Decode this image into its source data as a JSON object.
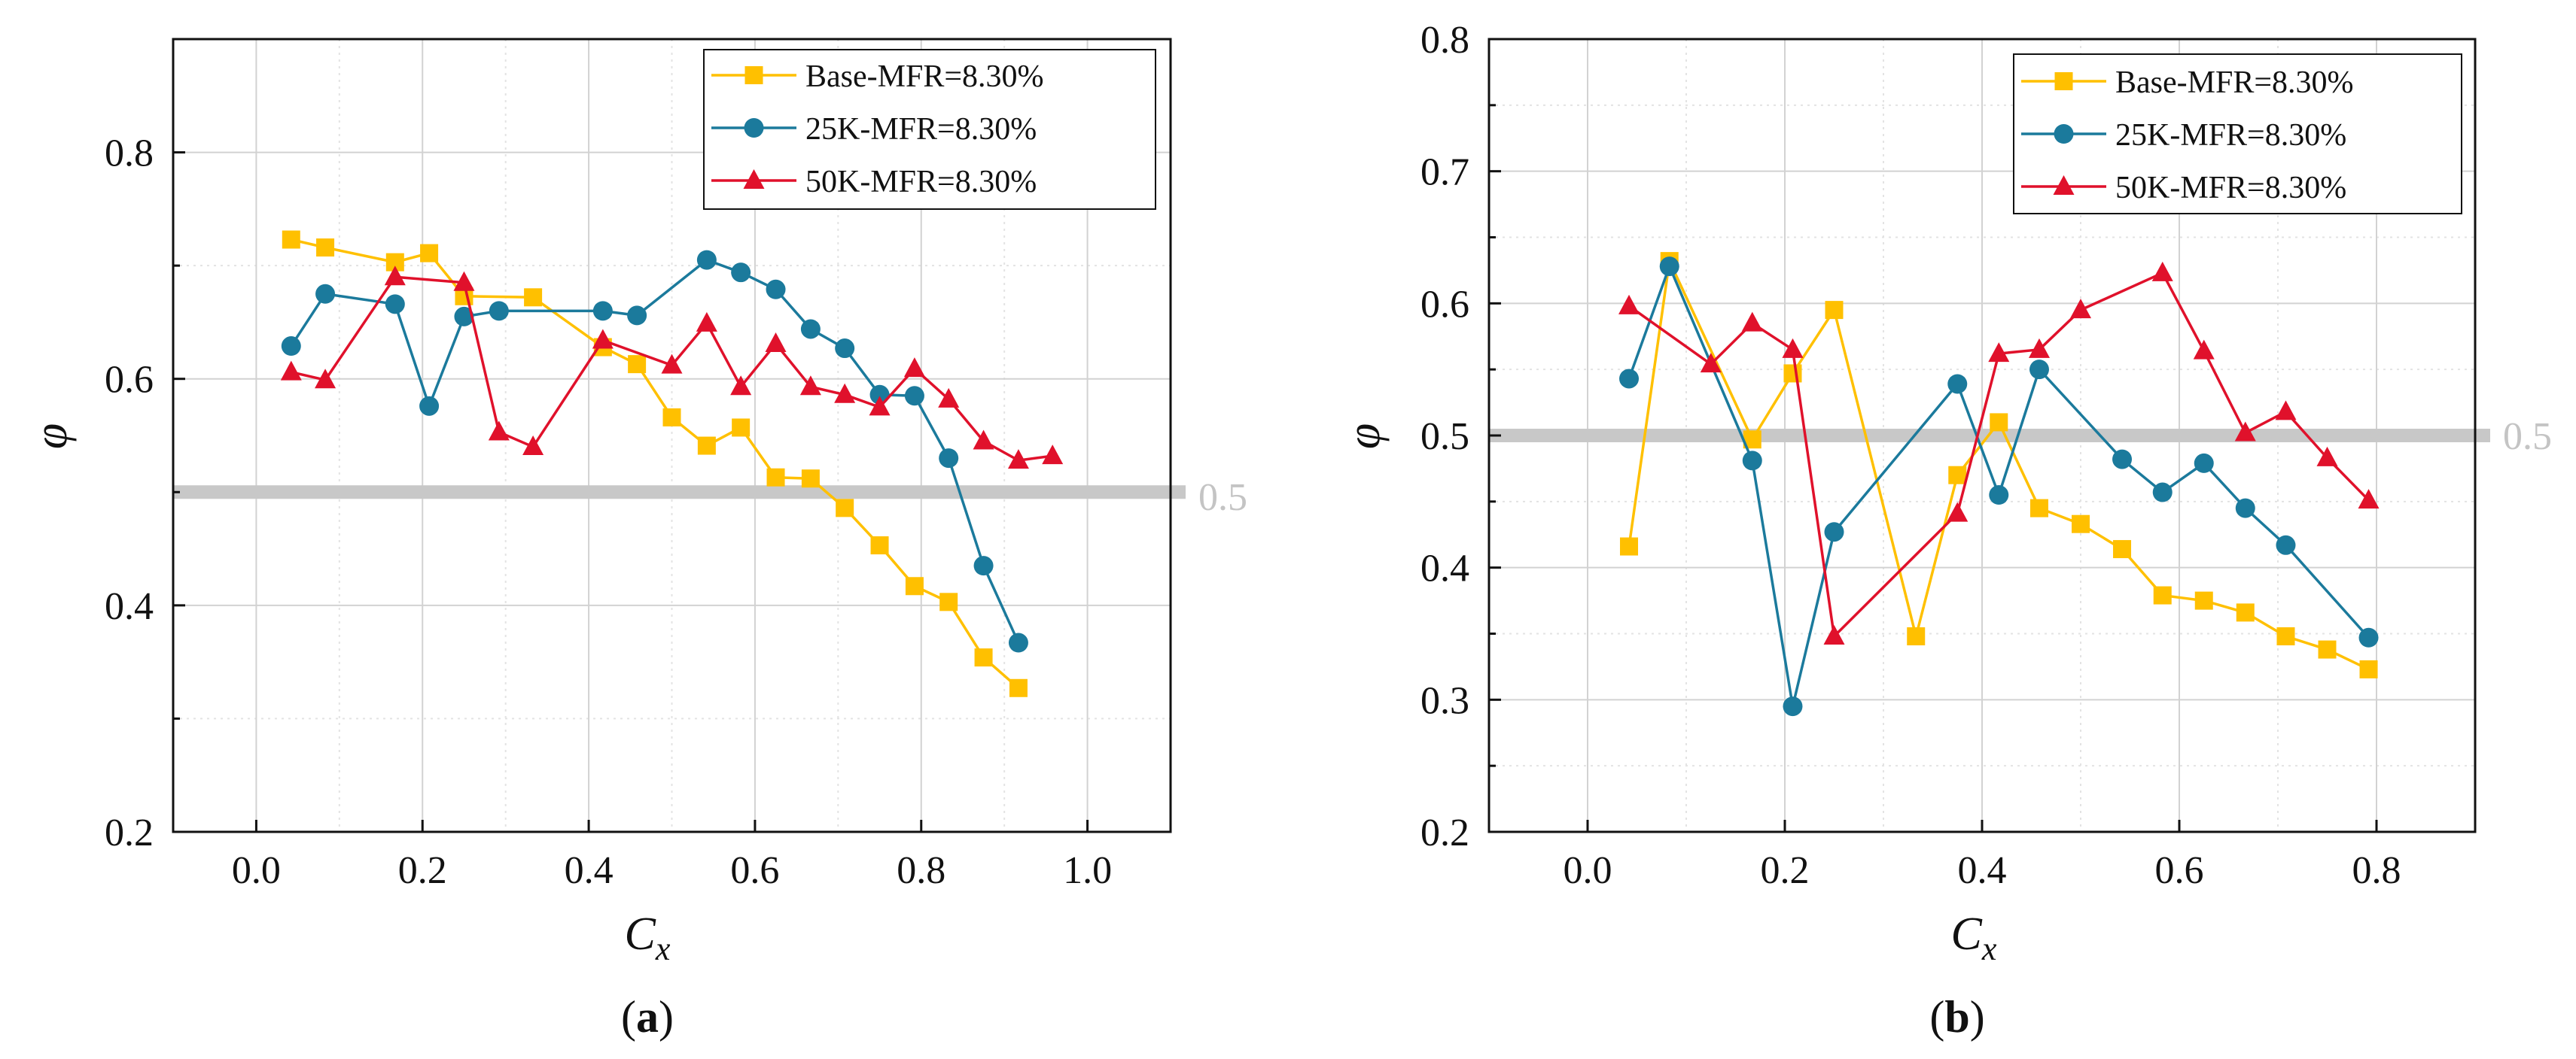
{
  "colors": {
    "base": "#FFC000",
    "k25": "#1B7A9C",
    "k50": "#E0112B",
    "grid_major": "#d2d2d2",
    "grid_minor": "#e3e3e3",
    "reference": "#c8c8c8",
    "axis": "#111111"
  },
  "chart_data": [
    {
      "id": "a",
      "type": "line",
      "panel_label": {
        "open": "(",
        "letter": "a",
        "close": ")"
      },
      "xlabel": {
        "main": "C",
        "sub": "x"
      },
      "ylabel": "φ",
      "xlim": [
        -0.1,
        1.1
      ],
      "ylim": [
        0.2,
        0.9
      ],
      "xticks": [
        0.0,
        0.2,
        0.4,
        0.6,
        0.8,
        1.0
      ],
      "xtick_labels": [
        "0.0",
        "0.2",
        "0.4",
        "0.6",
        "0.8",
        "1.0"
      ],
      "yticks": [
        0.2,
        0.4,
        0.6,
        0.8
      ],
      "ytick_labels": [
        "0.2",
        "0.4",
        "0.6",
        "0.8"
      ],
      "yminor": [
        0.3,
        0.5,
        0.7
      ],
      "reference_line": {
        "y": 0.5,
        "label": "0.5"
      },
      "legend_position": "top-right",
      "series": [
        {
          "name": "Base-MFR=8.30%",
          "marker": "square",
          "color_key": "base",
          "x": [
            0.042,
            0.083,
            0.167,
            0.208,
            0.25,
            0.333,
            0.417,
            0.458,
            0.5,
            0.542,
            0.583,
            0.625,
            0.667,
            0.708,
            0.75,
            0.792,
            0.833,
            0.875,
            0.917
          ],
          "y": [
            0.723,
            0.716,
            0.703,
            0.711,
            0.673,
            0.672,
            0.628,
            0.613,
            0.566,
            0.541,
            0.557,
            0.513,
            0.512,
            0.486,
            0.453,
            0.417,
            0.403,
            0.354,
            0.327
          ]
        },
        {
          "name": "25K-MFR=8.30%",
          "marker": "circle",
          "color_key": "k25",
          "x": [
            0.042,
            0.083,
            0.167,
            0.208,
            0.25,
            0.292,
            0.417,
            0.458,
            0.542,
            0.583,
            0.625,
            0.667,
            0.708,
            0.75,
            0.792,
            0.833,
            0.875,
            0.917
          ],
          "y": [
            0.629,
            0.675,
            0.666,
            0.576,
            0.655,
            0.66,
            0.66,
            0.656,
            0.705,
            0.694,
            0.679,
            0.644,
            0.627,
            0.586,
            0.585,
            0.53,
            0.435,
            0.367
          ]
        },
        {
          "name": "50K-MFR=8.30%",
          "marker": "triangle",
          "color_key": "k50",
          "x": [
            0.042,
            0.083,
            0.167,
            0.25,
            0.292,
            0.333,
            0.417,
            0.5,
            0.542,
            0.583,
            0.625,
            0.667,
            0.708,
            0.75,
            0.792,
            0.833,
            0.875,
            0.917,
            0.958
          ],
          "y": [
            0.606,
            0.599,
            0.69,
            0.685,
            0.553,
            0.54,
            0.634,
            0.612,
            0.649,
            0.593,
            0.631,
            0.593,
            0.586,
            0.575,
            0.609,
            0.582,
            0.545,
            0.528,
            0.532
          ]
        }
      ]
    },
    {
      "id": "b",
      "type": "line",
      "panel_label": {
        "open": "(",
        "letter": "b",
        "close": ")"
      },
      "xlabel": {
        "main": "C",
        "sub": "x"
      },
      "ylabel": "φ",
      "xlim": [
        -0.1,
        0.9
      ],
      "ylim": [
        0.2,
        0.8
      ],
      "xticks": [
        0.0,
        0.2,
        0.4,
        0.6,
        0.8
      ],
      "xtick_labels": [
        "0.0",
        "0.2",
        "0.4",
        "0.6",
        "0.8"
      ],
      "yticks": [
        0.2,
        0.3,
        0.4,
        0.5,
        0.6,
        0.7,
        0.8
      ],
      "ytick_labels": [
        "0.2",
        "0.3",
        "0.4",
        "0.5",
        "0.6",
        "0.7",
        "0.8"
      ],
      "yminor": [
        0.25,
        0.35,
        0.45,
        0.55,
        0.65,
        0.75
      ],
      "reference_line": {
        "y": 0.5,
        "label": "0.5"
      },
      "legend_position": "top-right",
      "series": [
        {
          "name": "Base-MFR=8.30%",
          "marker": "square",
          "color_key": "base",
          "x": [
            0.042,
            0.083,
            0.167,
            0.208,
            0.25,
            0.333,
            0.375,
            0.417,
            0.458,
            0.5,
            0.542,
            0.583,
            0.625,
            0.667,
            0.708,
            0.75,
            0.792
          ],
          "y": [
            0.416,
            0.632,
            0.497,
            0.547,
            0.595,
            0.348,
            0.47,
            0.51,
            0.445,
            0.433,
            0.414,
            0.379,
            0.375,
            0.366,
            0.348,
            0.338,
            0.323
          ]
        },
        {
          "name": "25K-MFR=8.30%",
          "marker": "circle",
          "color_key": "k25",
          "x": [
            0.042,
            0.083,
            0.167,
            0.208,
            0.25,
            0.375,
            0.417,
            0.458,
            0.542,
            0.583,
            0.625,
            0.667,
            0.708,
            0.792
          ],
          "y": [
            0.543,
            0.628,
            0.481,
            0.295,
            0.427,
            0.539,
            0.455,
            0.55,
            0.482,
            0.457,
            0.479,
            0.445,
            0.417,
            0.347
          ]
        },
        {
          "name": "50K-MFR=8.30%",
          "marker": "triangle",
          "color_key": "k50",
          "x": [
            0.042,
            0.125,
            0.167,
            0.208,
            0.25,
            0.375,
            0.417,
            0.458,
            0.5,
            0.583,
            0.625,
            0.667,
            0.708,
            0.75,
            0.792
          ],
          "y": [
            0.598,
            0.554,
            0.585,
            0.565,
            0.348,
            0.441,
            0.562,
            0.565,
            0.595,
            0.623,
            0.564,
            0.502,
            0.518,
            0.483,
            0.451
          ]
        }
      ]
    }
  ]
}
